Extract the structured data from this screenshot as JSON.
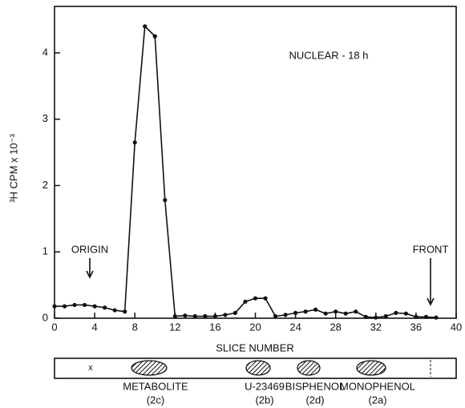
{
  "chart_data": {
    "type": "line",
    "title": "NUCLEAR - 18 h",
    "x_label": "SLICE NUMBER",
    "y_label": "³H CPM x 10⁻³",
    "x": [
      0,
      1,
      2,
      3,
      4,
      5,
      6,
      7,
      8,
      9,
      10,
      11,
      12,
      13,
      14,
      15,
      16,
      17,
      18,
      19,
      20,
      21,
      22,
      23,
      24,
      25,
      26,
      27,
      28,
      29,
      30,
      31,
      32,
      33,
      34,
      35,
      36,
      37,
      38
    ],
    "series": [
      {
        "color": "#111111",
        "values": [
          0.18,
          0.18,
          0.2,
          0.2,
          0.18,
          0.16,
          0.12,
          0.1,
          2.65,
          4.4,
          4.25,
          1.78,
          0.03,
          0.04,
          0.03,
          0.03,
          0.03,
          0.05,
          0.08,
          0.25,
          0.3,
          0.3,
          0.03,
          0.05,
          0.08,
          0.1,
          0.13,
          0.07,
          0.1,
          0.07,
          0.1,
          0.02,
          0.01,
          0.03,
          0.08,
          0.07,
          0.02,
          0.02,
          0.01
        ]
      }
    ],
    "xlim": [
      0,
      40
    ],
    "xticks": [
      0,
      4,
      8,
      12,
      16,
      20,
      24,
      28,
      32,
      36,
      40
    ],
    "ylim": [
      0,
      4.7
    ],
    "yticks": [
      0,
      1,
      2,
      3,
      4
    ],
    "annotations": [
      "ORIGIN",
      "FRONT"
    ],
    "tlc_spots": [
      {
        "name": "METABOLITE",
        "code": "(2c)"
      },
      {
        "name": "U-23469",
        "code": "(2b)"
      },
      {
        "name": "BISPHENOL",
        "code": "(2d)"
      },
      {
        "name": "MONOPHENOL",
        "code": "(2a)"
      }
    ]
  }
}
